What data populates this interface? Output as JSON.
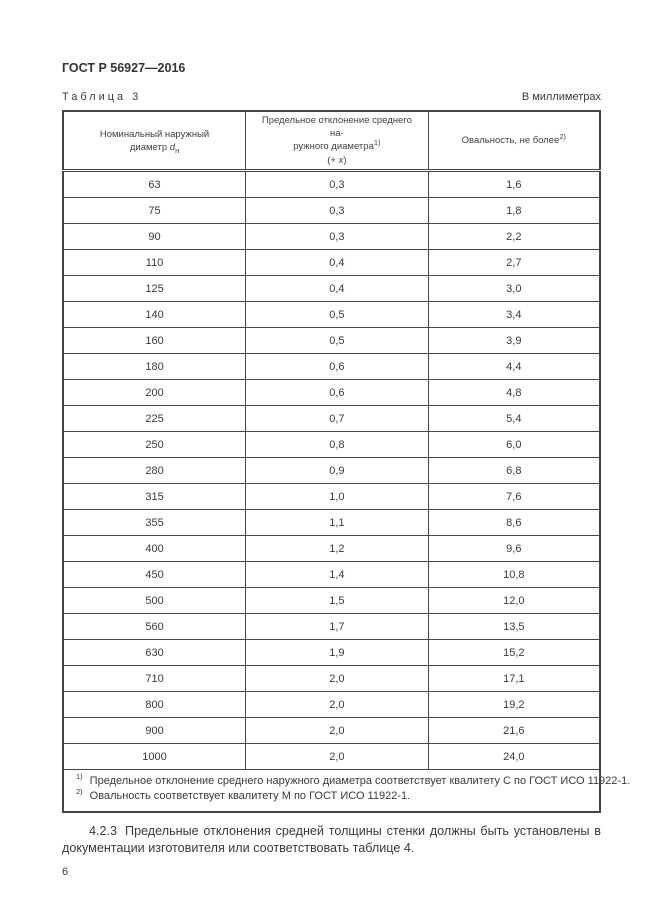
{
  "page": {
    "header": "ГОСТ Р 56927—2016",
    "table_caption": "Таблица 3",
    "units_note": "В миллиметрах",
    "page_number": "6"
  },
  "table": {
    "header": {
      "col1": {
        "line1": "Номинальный наружный",
        "line2": "диаметр ",
        "symbol": "d",
        "symbol_sub": "н"
      },
      "col2": {
        "line1": "Предельное отклонение среднего на-",
        "line2": "ружного диаметра",
        "footnote_marker": "1)",
        "formula_open": "(+ ",
        "formula_var": "x",
        "formula_close": ")"
      },
      "col3": {
        "text": "Овальность, не более",
        "footnote_marker": "2)"
      }
    },
    "rows": [
      [
        "63",
        "0,3",
        "1,6"
      ],
      [
        "75",
        "0,3",
        "1,8"
      ],
      [
        "90",
        "0,3",
        "2,2"
      ],
      [
        "110",
        "0,4",
        "2,7"
      ],
      [
        "125",
        "0,4",
        "3,0"
      ],
      [
        "140",
        "0,5",
        "3,4"
      ],
      [
        "160",
        "0,5",
        "3,9"
      ],
      [
        "180",
        "0,6",
        "4,4"
      ],
      [
        "200",
        "0,6",
        "4,8"
      ],
      [
        "225",
        "0,7",
        "5,4"
      ],
      [
        "250",
        "0,8",
        "6,0"
      ],
      [
        "280",
        "0,9",
        "6,8"
      ],
      [
        "315",
        "1,0",
        "7,6"
      ],
      [
        "355",
        "1,1",
        "8,6"
      ],
      [
        "400",
        "1,2",
        "9,6"
      ],
      [
        "450",
        "1,4",
        "10,8"
      ],
      [
        "500",
        "1,5",
        "12,0"
      ],
      [
        "560",
        "1,7",
        "13,5"
      ],
      [
        "630",
        "1,9",
        "15,2"
      ],
      [
        "710",
        "2,0",
        "17,1"
      ],
      [
        "800",
        "2,0",
        "19,2"
      ],
      [
        "900",
        "2,0",
        "21,6"
      ],
      [
        "1000",
        "2,0",
        "24,0"
      ]
    ]
  },
  "footnotes": [
    {
      "marker": "1)",
      "text": "Предельное отклонение среднего наружного диаметра соответствует квалитету С по ГОСТ ИСО 11922-1."
    },
    {
      "marker": "2)",
      "text": "Овальность соответствует квалитету М по ГОСТ ИСО 11922-1."
    }
  ],
  "paragraph": {
    "number": "4.2.3",
    "text": "Предельные отклонения средней толщины стенки должны быть установлены в документации изготовителя или соответствовать таблице 4."
  }
}
